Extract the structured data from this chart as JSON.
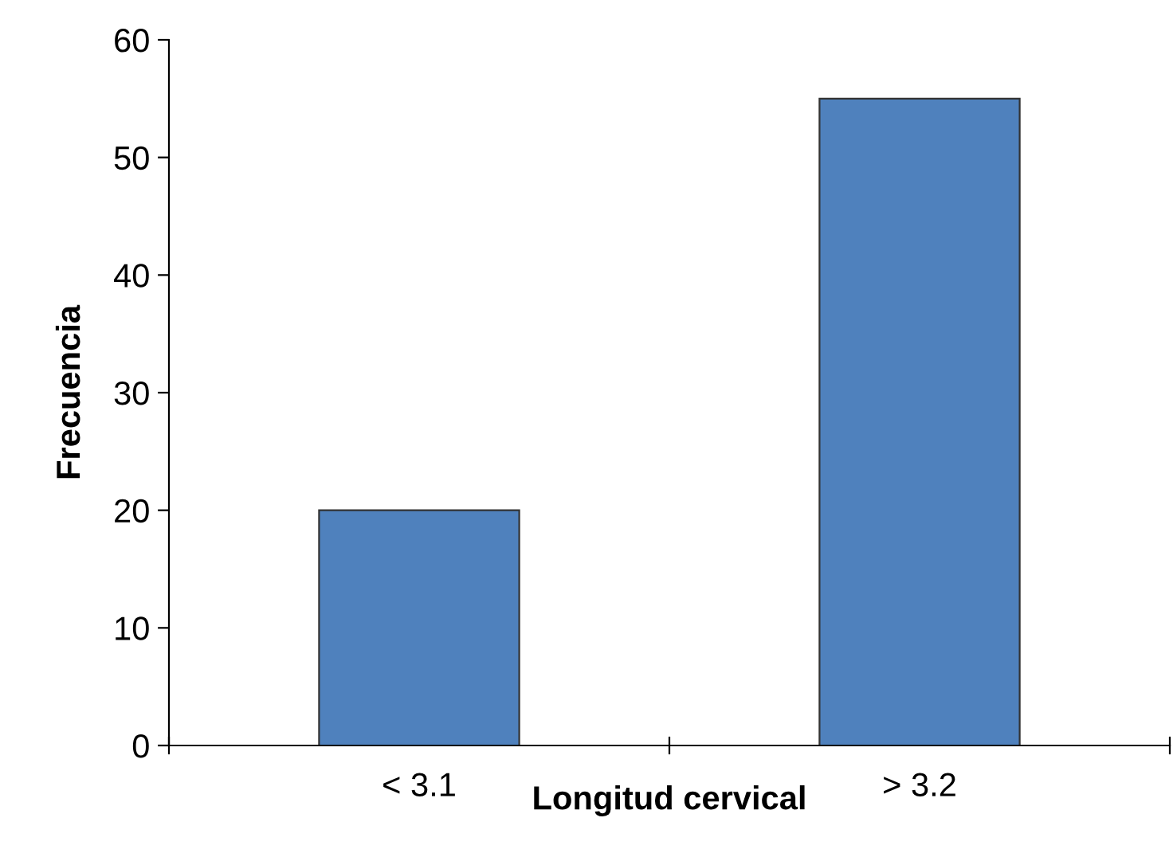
{
  "chart_data": {
    "type": "bar",
    "xlabel": "Longitud cervical",
    "ylabel": "Frecuencia",
    "categories": [
      "< 3.1",
      "> 3.2"
    ],
    "series": [
      {
        "color": "#4f81bd",
        "values": [
          20,
          55
        ]
      }
    ],
    "ylim": [
      0,
      60
    ],
    "yticks": [
      0,
      10,
      20,
      30,
      40,
      50,
      60
    ],
    "grid": false,
    "legend": false
  }
}
